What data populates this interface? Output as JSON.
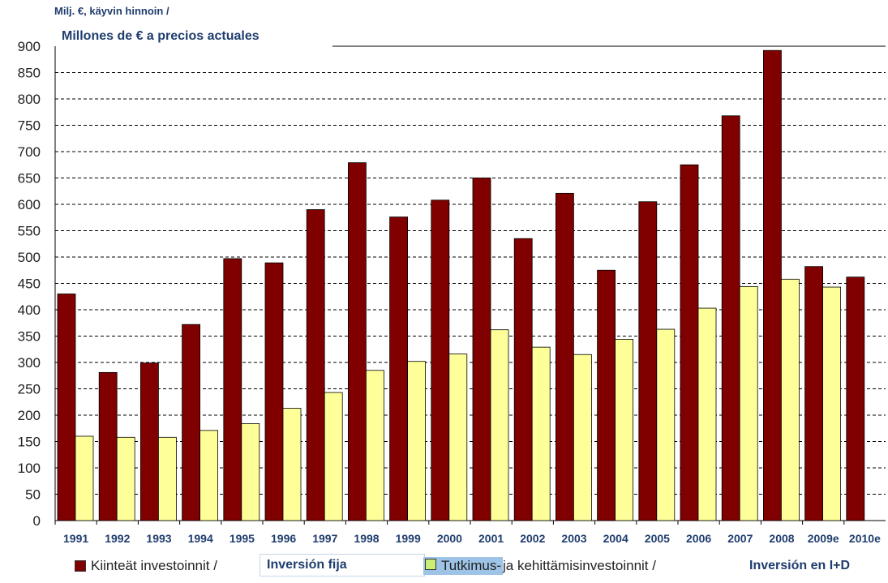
{
  "chart_data": {
    "type": "bar",
    "title_line1": "Milj. €, käyvin hinnoin /",
    "title_line2": "Millones de € a precios actuales",
    "categories": [
      "1991",
      "1992",
      "1993",
      "1994",
      "1995",
      "1996",
      "1997",
      "1998",
      "1999",
      "2000",
      "2001",
      "2002",
      "2003",
      "2004",
      "2005",
      "2006",
      "2007",
      "2008",
      "2009e",
      "2010e"
    ],
    "series": [
      {
        "name": "Kiinteät investoinnit / Inversión fija",
        "color": "#800000",
        "values": [
          430,
          281,
          299,
          372,
          497,
          489,
          590,
          679,
          576,
          608,
          650,
          535,
          621,
          475,
          605,
          675,
          768,
          892,
          482,
          462
        ]
      },
      {
        "name": "Tutkimus- ja kehittämisinvestoinnit / Inversión en I+D",
        "color": "#ffff99",
        "values": [
          160,
          158,
          158,
          171,
          184,
          213,
          243,
          285,
          302,
          316,
          362,
          329,
          315,
          344,
          363,
          403,
          444,
          458,
          443,
          null
        ]
      }
    ],
    "yticks": [
      0,
      50,
      100,
      150,
      200,
      250,
      300,
      350,
      400,
      450,
      500,
      550,
      600,
      650,
      700,
      750,
      800,
      850,
      900
    ],
    "ylim": [
      0,
      900
    ],
    "grid": true,
    "legend": {
      "s1_fi": "Kiinteät investoinnit /",
      "s1_es": "Inversión fija",
      "s2_fi_hl": "Tutkimus-",
      "s2_fi_rest": " ja kehittämisinvestoinnit /",
      "s2_es": "Inversión en I+D",
      "placement": "bottom"
    }
  }
}
